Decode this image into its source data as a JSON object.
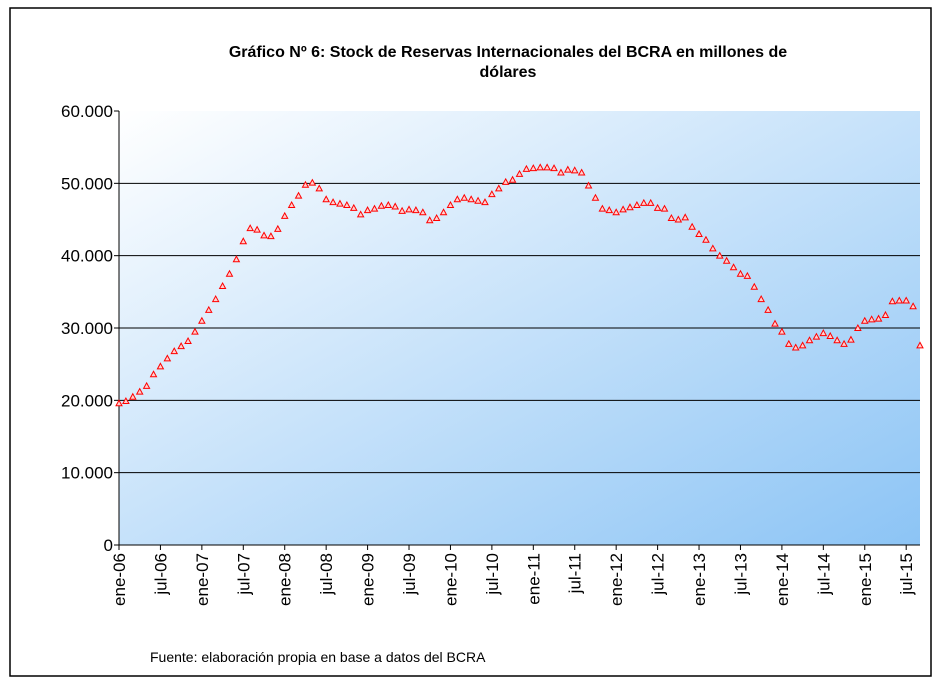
{
  "chart_data": {
    "type": "line",
    "title": "Gráfico Nº 6: Stock de Reservas Internacionales del BCRA en millones de dólares",
    "source": "Fuente: elaboración propia en base a datos del BCRA",
    "categories": [
      "ene-06",
      null,
      null,
      null,
      null,
      null,
      "jul-06",
      null,
      null,
      null,
      null,
      null,
      "ene-07",
      null,
      null,
      null,
      null,
      null,
      "jul-07",
      null,
      null,
      null,
      null,
      null,
      "ene-08",
      null,
      null,
      null,
      null,
      null,
      "jul-08",
      null,
      null,
      null,
      null,
      null,
      "ene-09",
      null,
      null,
      null,
      null,
      null,
      "jul-09",
      null,
      null,
      null,
      null,
      null,
      "ene-10",
      null,
      null,
      null,
      null,
      null,
      "jul-10",
      null,
      null,
      null,
      null,
      null,
      "ene-11",
      null,
      null,
      null,
      null,
      null,
      "jul-11",
      null,
      null,
      null,
      null,
      null,
      "ene-12",
      null,
      null,
      null,
      null,
      null,
      "jul-12",
      null,
      null,
      null,
      null,
      null,
      "ene-13",
      null,
      null,
      null,
      null,
      null,
      "jul-13",
      null,
      null,
      null,
      null,
      null,
      "ene-14",
      null,
      null,
      null,
      null,
      null,
      "jul-14",
      null,
      null,
      null,
      null,
      null,
      "ene-15",
      null,
      null,
      null,
      null,
      null,
      "jul-15",
      null,
      null
    ],
    "series": [
      {
        "color": "#ff0000",
        "values": [
          19600,
          19900,
          20500,
          21200,
          22000,
          23600,
          24700,
          25800,
          26800,
          27500,
          28200,
          29500,
          31000,
          32500,
          34000,
          35800,
          37500,
          39500,
          42000,
          43800,
          43600,
          42800,
          42700,
          43700,
          45500,
          47000,
          48300,
          49800,
          50100,
          49300,
          47800,
          47400,
          47200,
          47000,
          46600,
          45700,
          46300,
          46500,
          46900,
          47000,
          46800,
          46200,
          46400,
          46300,
          46000,
          44900,
          45200,
          46000,
          47000,
          47800,
          48000,
          47800,
          47600,
          47400,
          48500,
          49300,
          50200,
          50500,
          51300,
          52000,
          52100,
          52200,
          52200,
          52100,
          51500,
          51900,
          51800,
          51500,
          49700,
          48000,
          46500,
          46300,
          46000,
          46400,
          46700,
          47000,
          47300,
          47300,
          46600,
          46500,
          45200,
          45000,
          45300,
          44000,
          43000,
          42200,
          41000,
          40000,
          39300,
          38400,
          37500,
          37200,
          35700,
          34000,
          32500,
          30600,
          29500,
          27800,
          27300,
          27600,
          28300,
          28800,
          29300,
          28900,
          28300,
          27800,
          28400,
          30000,
          31000,
          31200,
          31300,
          31800,
          33700,
          33800,
          33800,
          33000,
          27600
        ]
      }
    ],
    "ylim": [
      0,
      60000
    ],
    "yticks": [
      0,
      {
        "value": 10000,
        "label": "10.000"
      },
      {
        "value": 20000,
        "label": "20.000"
      },
      {
        "value": 30000,
        "label": "30.000"
      },
      {
        "value": 40000,
        "label": "40.000"
      },
      {
        "value": 50000,
        "label": "50.000"
      },
      {
        "value": 60000,
        "label": "60.000"
      }
    ],
    "grid": true
  }
}
